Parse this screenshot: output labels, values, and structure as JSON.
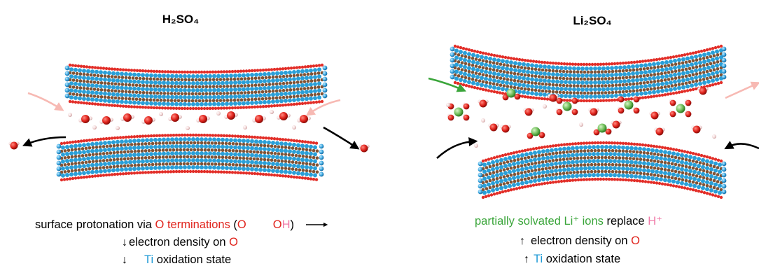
{
  "left": {
    "title": "H₂SO₄",
    "caption_line1": {
      "prefix": "surface protonation via ",
      "o_term": "O terminations",
      "open_paren": " (",
      "o_symbol": "O",
      "arrow": "→",
      "oh_o": "O",
      "oh_h": "H",
      "close_paren": ")"
    },
    "caption_line2": {
      "arrow": "↓",
      "text": "electron density on ",
      "o_symbol": "O"
    },
    "caption_line3": {
      "arrow": "↓",
      "ti": "Ti",
      "text": " oxidation state"
    }
  },
  "right": {
    "title": "Li₂SO₄",
    "caption_line1": {
      "green_text": "partially solvated Li⁺ ions",
      "mid": " replace ",
      "h_plus": "H⁺"
    },
    "caption_line2": {
      "arrow": "↑",
      "text": "electron density on ",
      "o_symbol": "O"
    },
    "caption_line3": {
      "arrow": "↑",
      "ti": "Ti",
      "text": " oxidation state"
    }
  },
  "colors": {
    "oxygen": "#e0231c",
    "hydrogen_pink": "#f07aa8",
    "titanium": "#1e9ad6",
    "carbon": "#7a4a2a",
    "lithium": "#6fbf5a",
    "arrow_green": "#3aa53a",
    "arrow_pink": "#f7b9b3"
  }
}
